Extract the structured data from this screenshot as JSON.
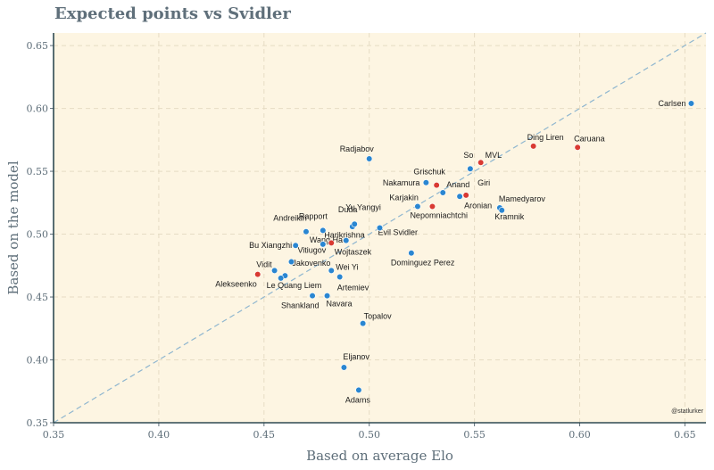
{
  "chart_data": {
    "type": "scatter",
    "title": "Expected points vs Svidler",
    "xlabel": "Based on average Elo",
    "ylabel": "Based on the model",
    "xlim": [
      0.35,
      0.66
    ],
    "ylim": [
      0.35,
      0.66
    ],
    "xticks": [
      "0.35",
      "0.40",
      "0.45",
      "0.50",
      "0.55",
      "0.60",
      "0.65"
    ],
    "yticks": [
      "0.35",
      "0.40",
      "0.45",
      "0.50",
      "0.55",
      "0.60",
      "0.65"
    ],
    "grid": true,
    "reference_line": "y = x",
    "credit": "@statlurker",
    "colors": {
      "background": "#fdf5e2",
      "blue": "#2a86d1",
      "red": "#d93a32",
      "diagonal": "#8fb6cf",
      "grid": "#e6dcc4",
      "axis": "#5f6f7a",
      "border": "#2f4a52"
    },
    "points": [
      {
        "name": "Carlsen",
        "x": 0.653,
        "y": 0.604,
        "color": "blue"
      },
      {
        "name": "Caruana",
        "x": 0.599,
        "y": 0.569,
        "color": "red"
      },
      {
        "name": "Ding Liren",
        "x": 0.578,
        "y": 0.57,
        "color": "red"
      },
      {
        "name": "MVL",
        "x": 0.553,
        "y": 0.557,
        "color": "red"
      },
      {
        "name": "So",
        "x": 0.548,
        "y": 0.552,
        "color": "blue"
      },
      {
        "name": "Radjabov",
        "x": 0.5,
        "y": 0.56,
        "color": "blue"
      },
      {
        "name": "Grischuk",
        "x": 0.532,
        "y": 0.539,
        "color": "red"
      },
      {
        "name": "Nakamura",
        "x": 0.527,
        "y": 0.541,
        "color": "blue"
      },
      {
        "name": "Anand",
        "x": 0.535,
        "y": 0.533,
        "color": "blue"
      },
      {
        "name": "Giri",
        "x": 0.546,
        "y": 0.531,
        "color": "red"
      },
      {
        "name": "Aronian",
        "x": 0.543,
        "y": 0.53,
        "color": "blue"
      },
      {
        "name": "Karjakin",
        "x": 0.523,
        "y": 0.522,
        "color": "blue"
      },
      {
        "name": "Nepomniachtchi",
        "x": 0.53,
        "y": 0.522,
        "color": "red"
      },
      {
        "name": "Mamedyarov",
        "x": 0.562,
        "y": 0.521,
        "color": "blue"
      },
      {
        "name": "Kramnik",
        "x": 0.563,
        "y": 0.519,
        "color": "blue"
      },
      {
        "name": "Andreikin",
        "x": 0.47,
        "y": 0.502,
        "color": "blue"
      },
      {
        "name": "Rapport",
        "x": 0.478,
        "y": 0.503,
        "color": "blue"
      },
      {
        "name": "Duda",
        "x": 0.492,
        "y": 0.506,
        "color": "blue"
      },
      {
        "name": "Yu Yangyi",
        "x": 0.493,
        "y": 0.508,
        "color": "blue"
      },
      {
        "name": "Evil Svidler",
        "x": 0.505,
        "y": 0.505,
        "color": "blue"
      },
      {
        "name": "Wang Hao",
        "x": 0.478,
        "y": 0.492,
        "color": "blue"
      },
      {
        "name": "Harikrishna",
        "x": 0.482,
        "y": 0.493,
        "color": "red"
      },
      {
        "name": "Bu Xiangzhi",
        "x": 0.465,
        "y": 0.491,
        "color": "blue"
      },
      {
        "name": "Wojtaszek",
        "x": 0.489,
        "y": 0.495,
        "color": "blue"
      },
      {
        "name": "Dominguez Perez",
        "x": 0.52,
        "y": 0.485,
        "color": "blue"
      },
      {
        "name": "Vitiugov",
        "x": 0.463,
        "y": 0.478,
        "color": "blue"
      },
      {
        "name": "Vidit",
        "x": 0.455,
        "y": 0.471,
        "color": "blue"
      },
      {
        "name": "Jakovenko",
        "x": 0.46,
        "y": 0.467,
        "color": "blue"
      },
      {
        "name": "Alekseenko",
        "x": 0.447,
        "y": 0.468,
        "color": "red"
      },
      {
        "name": "Wei Yi",
        "x": 0.482,
        "y": 0.471,
        "color": "blue"
      },
      {
        "name": "Le Quang Liem",
        "x": 0.458,
        "y": 0.465,
        "color": "blue"
      },
      {
        "name": "Artemiev",
        "x": 0.486,
        "y": 0.466,
        "color": "blue"
      },
      {
        "name": "Shankland",
        "x": 0.473,
        "y": 0.451,
        "color": "blue"
      },
      {
        "name": "Navara",
        "x": 0.48,
        "y": 0.451,
        "color": "blue"
      },
      {
        "name": "Topalov",
        "x": 0.497,
        "y": 0.429,
        "color": "blue"
      },
      {
        "name": "Eljanov",
        "x": 0.488,
        "y": 0.394,
        "color": "blue"
      },
      {
        "name": "Adams",
        "x": 0.495,
        "y": 0.376,
        "color": "blue"
      }
    ]
  }
}
